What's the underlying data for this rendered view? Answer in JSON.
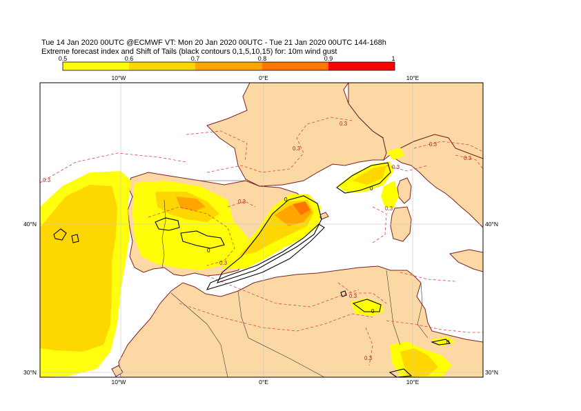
{
  "header": {
    "line1": "Tue 14 Jan 2020 00UTC @ECMWF VT: Mon 20 Jan 2020 00UTC - Tue 21 Jan 2020 00UTC  144-168h",
    "line2": "Extreme forecast index and Shift of Tails (black contours 0,1,5,10,15) for: 10m wind gust"
  },
  "legend": {
    "labels": [
      "0.5",
      "0.6",
      "0.7",
      "0.8",
      "0.9",
      "1"
    ],
    "colors": [
      "#ffff00",
      "#ffd700",
      "#ffa500",
      "#ff7700",
      "#ff0000"
    ]
  },
  "axes": {
    "lon_top": [
      "10°W",
      "0°E",
      "10°E"
    ],
    "lon_bottom": [
      "10°W",
      "0°E",
      "10°E"
    ],
    "lat_left": [
      "40°N",
      "30°N"
    ],
    "lat_right": [
      "40°N",
      "30°N"
    ]
  },
  "contour_labels": {
    "eps": "0.3",
    "sot": "0"
  },
  "colors": {
    "land": "#fcd9a4",
    "sea": "#ffffff",
    "coast": "#7a1f1f",
    "grid": "#cccccc",
    "efi_05": "#ffff00",
    "efi_06": "#ffd700",
    "efi_07": "#ffa500",
    "efi_08": "#ff7700",
    "dash": "#e04040"
  }
}
